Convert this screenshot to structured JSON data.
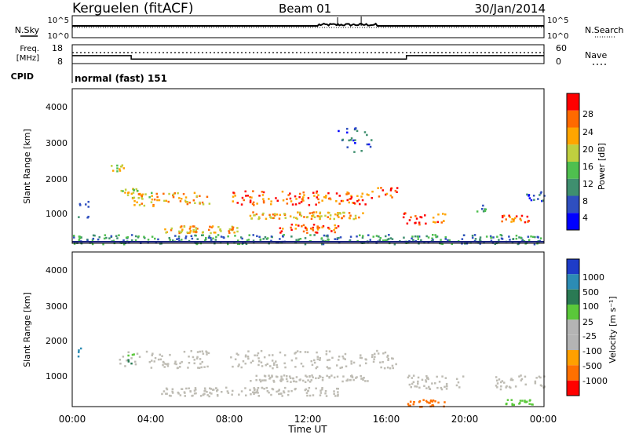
{
  "header": {
    "station": "Kerguelen (fitACF)",
    "beam": "Beam 01",
    "date": "30/Jan/2014"
  },
  "noise_panel": {
    "left_label": "N.Sky",
    "right_label": "N.Search",
    "y_ticks": [
      "10^5",
      "10^0"
    ]
  },
  "freq_panel": {
    "left_label_1": "Freq.",
    "left_label_2": "[MHz]",
    "right_label": "Nave",
    "left_ticks": [
      "18",
      "8"
    ],
    "right_ticks": [
      "60",
      "0"
    ]
  },
  "cpid": {
    "label": "CPID",
    "value": "normal (fast) 151"
  },
  "time_axis": {
    "label": "Time UT",
    "ticks": [
      "00:00",
      "04:00",
      "08:00",
      "12:00",
      "16:00",
      "20:00",
      "00:00"
    ]
  },
  "power_panel": {
    "ylabel": "Slant Range [km]",
    "y_ticks": [
      "4000",
      "3000",
      "2000",
      "1000"
    ],
    "colorbar_label": "Power [dB]",
    "colorbar_ticks": [
      "28",
      "24",
      "20",
      "16",
      "12",
      "8",
      "4"
    ],
    "colors": [
      "#0000ff",
      "#2f4fbf",
      "#3f8f6f",
      "#4fbf4f",
      "#bfcf3f",
      "#ffa500",
      "#ff6a00",
      "#ff0000"
    ]
  },
  "velocity_panel": {
    "ylabel": "Slant Range [km]",
    "y_ticks": [
      "4000",
      "3000",
      "2000",
      "1000"
    ],
    "colorbar_label": "Velocity [m s⁻¹]",
    "colorbar_ticks": [
      "1000",
      "500",
      "100",
      "25",
      "-25",
      "-100",
      "-500",
      "-1000"
    ],
    "colors": [
      "#1e3cc8",
      "#2c8cb4",
      "#2a7a54",
      "#5ac83a",
      "#b4b4b4",
      "#b4b4b4",
      "#ffa000",
      "#ff7000",
      "#ff0000"
    ],
    "ground_color": "#bebcb4"
  },
  "chart_data": {
    "type": "heatmap",
    "x_range_hours": [
      0,
      24
    ],
    "y_range_km": [
      180,
      4600
    ],
    "freq_mhz": {
      "x": [
        0,
        3,
        3,
        17,
        17,
        24
      ],
      "y": [
        12.2,
        12.2,
        10.4,
        10.4,
        12.2,
        12.2
      ]
    },
    "power_bands": [
      {
        "t0": 2.3,
        "t1": 4.0,
        "r0": 1500,
        "r1": 1800,
        "level": 4
      },
      {
        "t0": 3.0,
        "t1": 7.0,
        "r0": 1250,
        "r1": 1650,
        "level": 5
      },
      {
        "t0": 8.0,
        "t1": 15.5,
        "r0": 1300,
        "r1": 1700,
        "level": 6
      },
      {
        "t0": 15.5,
        "t1": 16.5,
        "r0": 1450,
        "r1": 1800,
        "level": 6
      },
      {
        "t0": 9.0,
        "t1": 15.0,
        "r0": 900,
        "r1": 1100,
        "level": 5
      },
      {
        "t0": 10.5,
        "t1": 13.5,
        "r0": 500,
        "r1": 750,
        "level": 6
      },
      {
        "t0": 4.5,
        "t1": 8.5,
        "r0": 500,
        "r1": 700,
        "level": 5
      },
      {
        "t0": 16.8,
        "t1": 18.0,
        "r0": 700,
        "r1": 1100,
        "level": 7
      },
      {
        "t0": 18.3,
        "t1": 19.0,
        "r0": 800,
        "r1": 1100,
        "level": 6
      },
      {
        "t0": 21.8,
        "t1": 23.2,
        "r0": 800,
        "r1": 1000,
        "level": 6
      },
      {
        "t0": 0.0,
        "t1": 24.0,
        "r0": 180,
        "r1": 450,
        "level": 2
      },
      {
        "t0": 0.2,
        "t1": 0.8,
        "r0": 900,
        "r1": 1400,
        "level": 2
      },
      {
        "t0": 1.8,
        "t1": 2.6,
        "r0": 2250,
        "r1": 2450,
        "level": 4
      },
      {
        "t0": 13.5,
        "t1": 15.2,
        "r0": 2800,
        "r1": 3500,
        "level": 1
      },
      {
        "t0": 20.5,
        "t1": 21.0,
        "r0": 1100,
        "r1": 1300,
        "level": 2
      },
      {
        "t0": 23.0,
        "t1": 24.0,
        "r0": 1400,
        "r1": 1700,
        "level": 1
      }
    ],
    "velocity_bands": [
      {
        "t0": 2.3,
        "t1": 7.0,
        "r0": 1300,
        "r1": 1800,
        "v": 0
      },
      {
        "t0": 8.0,
        "t1": 16.5,
        "r0": 1300,
        "r1": 1800,
        "v": 0
      },
      {
        "t0": 9.0,
        "t1": 15.0,
        "r0": 900,
        "r1": 1100,
        "v": 0
      },
      {
        "t0": 4.5,
        "t1": 13.5,
        "r0": 500,
        "r1": 750,
        "v": 0
      },
      {
        "t0": 16.8,
        "t1": 20.0,
        "r0": 700,
        "r1": 1100,
        "v": 0
      },
      {
        "t0": 21.5,
        "t1": 24.0,
        "r0": 700,
        "r1": 1100,
        "v": 0
      },
      {
        "t0": 17.0,
        "t1": 19.0,
        "r0": 200,
        "r1": 400,
        "v": -300
      },
      {
        "t0": 22.0,
        "t1": 23.5,
        "r0": 250,
        "r1": 400,
        "v": 50
      },
      {
        "t0": 2.8,
        "t1": 3.2,
        "r0": 1400,
        "r1": 1700,
        "v": 60
      },
      {
        "t0": 0.2,
        "t1": 0.5,
        "r0": 1600,
        "r1": 2000,
        "v": 700
      }
    ]
  }
}
